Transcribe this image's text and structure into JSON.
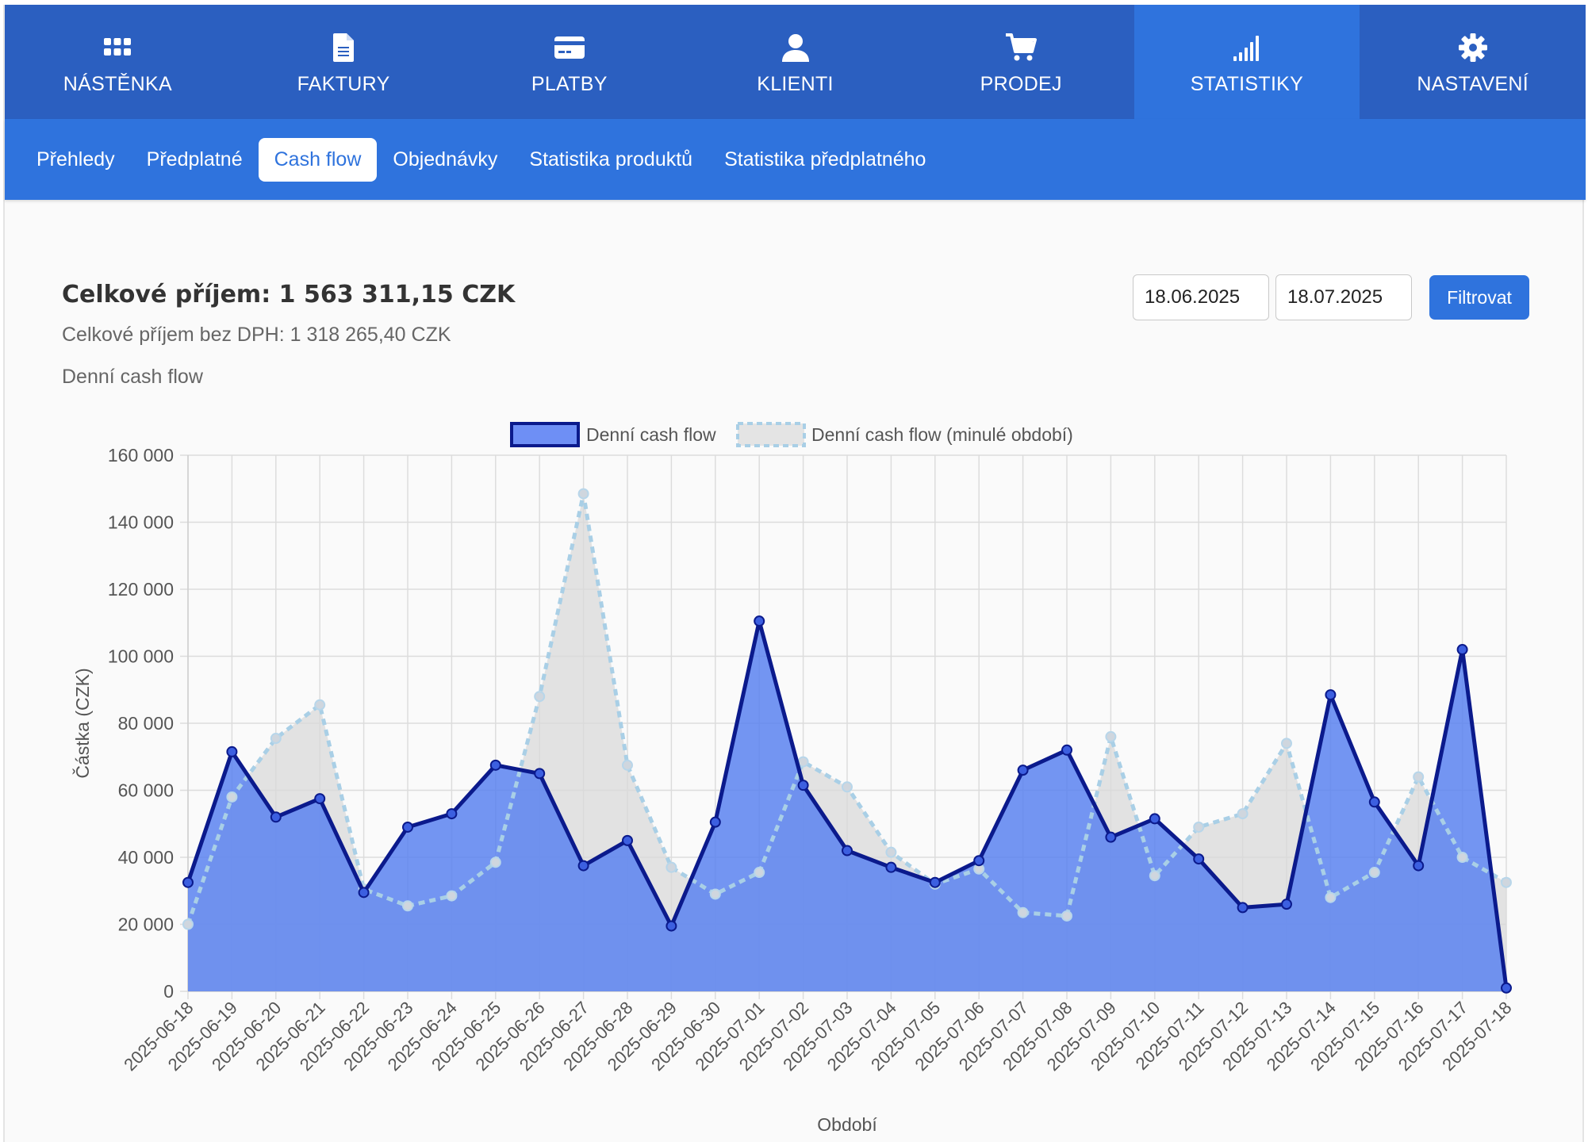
{
  "nav": {
    "items": [
      {
        "label": "NÁSTĚNKA",
        "icon": "dashboard-grid-icon"
      },
      {
        "label": "FAKTURY",
        "icon": "document-icon"
      },
      {
        "label": "PLATBY",
        "icon": "credit-card-icon"
      },
      {
        "label": "KLIENTI",
        "icon": "user-icon"
      },
      {
        "label": "PRODEJ",
        "icon": "shopping-cart-icon"
      },
      {
        "label": "STATISTIKY",
        "icon": "signal-bars-icon",
        "active": true
      },
      {
        "label": "NASTAVENÍ",
        "icon": "gear-icon"
      }
    ]
  },
  "subnav": {
    "tabs": [
      {
        "label": "Přehledy"
      },
      {
        "label": "Předplatné"
      },
      {
        "label": "Cash flow",
        "active": true
      },
      {
        "label": "Objednávky"
      },
      {
        "label": "Statistika produktů"
      },
      {
        "label": "Statistika předplatného"
      }
    ]
  },
  "summary": {
    "total": "Celkové příjem: 1 563 311,15 CZK",
    "total_no_vat": "Celkové příjem bez DPH: 1 318 265,40 CZK",
    "chart_caption": "Denní cash flow"
  },
  "filter": {
    "date_from": "18.06.2025",
    "date_to": "18.07.2025",
    "button_label": "Filtrovat"
  },
  "colors": {
    "nav_bg": "#2b5fc0",
    "nav_active": "#2f73dd",
    "current_line": "#0b1a8c",
    "current_fill": "#5b82f0",
    "previous_line": "#a9cfe6",
    "previous_fill": "#d9d9d9"
  },
  "chart_data": {
    "type": "area",
    "title": "",
    "xlabel": "Období",
    "ylabel": "Částka  (CZK)",
    "ylim": [
      0,
      160000
    ],
    "y_ticks": [
      "0",
      "20 000",
      "40 000",
      "60 000",
      "80 000",
      "100 000",
      "120 000",
      "140 000",
      "160 000"
    ],
    "grid": true,
    "legend_position": "top-center",
    "x": [
      "2025-06-18",
      "2025-06-19",
      "2025-06-20",
      "2025-06-21",
      "2025-06-22",
      "2025-06-23",
      "2025-06-24",
      "2025-06-25",
      "2025-06-26",
      "2025-06-27",
      "2025-06-28",
      "2025-06-29",
      "2025-06-30",
      "2025-07-01",
      "2025-07-02",
      "2025-07-03",
      "2025-07-04",
      "2025-07-05",
      "2025-07-06",
      "2025-07-07",
      "2025-07-08",
      "2025-07-09",
      "2025-07-10",
      "2025-07-11",
      "2025-07-12",
      "2025-07-13",
      "2025-07-14",
      "2025-07-15",
      "2025-07-16",
      "2025-07-17",
      "2025-07-18"
    ],
    "series": [
      {
        "name": "Denní cash flow",
        "values": [
          32500,
          71500,
          52000,
          57500,
          29500,
          49000,
          53000,
          67500,
          65000,
          37500,
          45000,
          19500,
          50500,
          110500,
          61500,
          42000,
          37000,
          32500,
          39000,
          66000,
          72000,
          46000,
          51500,
          39500,
          25000,
          26000,
          88500,
          56500,
          37500,
          102000,
          1000
        ]
      },
      {
        "name": "Denní cash flow (minulé období)",
        "values": [
          20000,
          58000,
          75500,
          85500,
          30500,
          25500,
          28500,
          38500,
          88000,
          148500,
          67500,
          37000,
          29000,
          35500,
          68500,
          61000,
          41500,
          32000,
          36500,
          23500,
          22500,
          76000,
          34500,
          49000,
          53000,
          74000,
          28000,
          35500,
          64000,
          40000,
          32500
        ]
      }
    ]
  }
}
